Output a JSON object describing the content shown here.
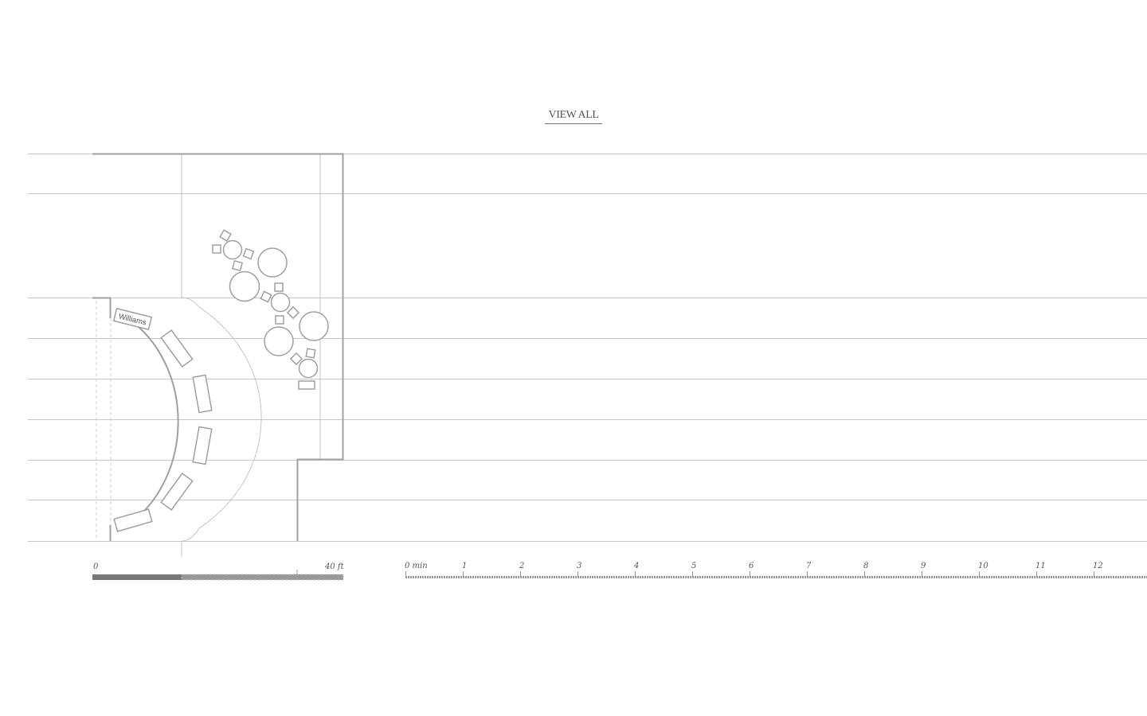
{
  "nav": {
    "view_all_label": "VIEW ALL"
  },
  "floorplan": {
    "table_label": "Williams",
    "scale": {
      "start_label": "0",
      "end_label": "40 ft",
      "feet": 40
    }
  },
  "timeline": {
    "unit_label": "min",
    "start_label": "0 min",
    "ticks": [
      "1",
      "2",
      "3",
      "4",
      "5",
      "6",
      "7",
      "8",
      "9",
      "10",
      "11",
      "12"
    ]
  },
  "colors": {
    "line": "#999999",
    "wall": "#a0a0a0",
    "text": "#555555",
    "bar": "#777777"
  }
}
